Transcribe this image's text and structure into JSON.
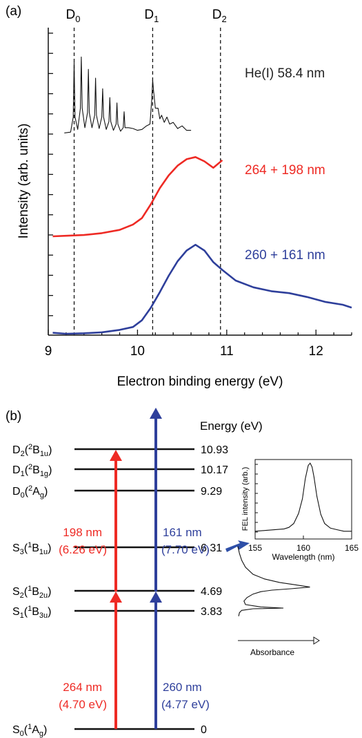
{
  "panel_a": {
    "label": "(a)",
    "ylabel": "Intensity (arb. units)",
    "xlabel": "Electron binding energy (eV)",
    "xticks": [
      "9",
      "10",
      "11",
      "12"
    ],
    "dashed_lines": [
      {
        "label": "D",
        "sub": "0",
        "x": 9.29
      },
      {
        "label": "D",
        "sub": "1",
        "x": 10.17
      },
      {
        "label": "D",
        "sub": "2",
        "x": 10.93
      }
    ]
  },
  "panel_b": {
    "label": "(b)",
    "energy_header": "Energy (eV)",
    "arrow_labels": {
      "red_upper": [
        "198 nm",
        "(6.26 eV)"
      ],
      "blue_upper": [
        "161 nm",
        "(7.70 eV)"
      ],
      "red_lower": [
        "264 nm",
        "(4.70 eV)"
      ],
      "blue_lower": [
        "260 nm",
        "(4.77 eV)"
      ]
    },
    "inset_fel": {
      "ylabel": "FEL intensity (arb.)",
      "xlabel": "Wavelength (nm)",
      "xticks": [
        "155",
        "160",
        "165"
      ]
    },
    "absorbance_label": "Absorbance"
  },
  "chart_data": [
    {
      "type": "line",
      "xlabel": "Electron binding energy (eV)",
      "ylabel": "Intensity (arb. units)",
      "xlim": [
        9,
        12.4
      ],
      "series": [
        {
          "name": "He(I) 58.4 nm",
          "color": "#111111",
          "x": [
            9.18,
            9.25,
            9.28,
            9.29,
            9.3,
            9.33,
            9.36,
            9.37,
            9.38,
            9.41,
            9.44,
            9.45,
            9.46,
            9.49,
            9.52,
            9.53,
            9.54,
            9.57,
            9.6,
            9.61,
            9.62,
            9.65,
            9.68,
            9.69,
            9.7,
            9.73,
            9.76,
            9.77,
            9.78,
            9.81,
            9.84,
            9.85,
            9.86,
            9.9,
            9.95,
            10.0,
            10.05,
            10.1,
            10.14,
            10.16,
            10.17,
            10.18,
            10.2,
            10.23,
            10.25,
            10.27,
            10.3,
            10.33,
            10.36,
            10.4,
            10.45,
            10.5,
            10.55,
            10.6
          ],
          "y": [
            0.02,
            0.03,
            0.2,
            0.82,
            0.2,
            0.06,
            0.3,
            0.88,
            0.3,
            0.08,
            0.25,
            0.74,
            0.25,
            0.08,
            0.22,
            0.64,
            0.22,
            0.07,
            0.2,
            0.52,
            0.2,
            0.06,
            0.15,
            0.42,
            0.15,
            0.05,
            0.12,
            0.36,
            0.12,
            0.04,
            0.08,
            0.26,
            0.08,
            0.08,
            0.07,
            0.05,
            0.06,
            0.1,
            0.12,
            0.4,
            0.62,
            0.5,
            0.3,
            0.3,
            0.18,
            0.22,
            0.14,
            0.2,
            0.12,
            0.14,
            0.07,
            0.1,
            0.05,
            0.05
          ]
        },
        {
          "name": "264 + 198 nm",
          "color": "#ee2a24",
          "x": [
            9.05,
            9.2,
            9.4,
            9.6,
            9.8,
            9.95,
            10.05,
            10.15,
            10.25,
            10.35,
            10.45,
            10.55,
            10.65,
            10.75,
            10.85,
            10.95
          ],
          "y": [
            0.0,
            0.005,
            0.012,
            0.03,
            0.06,
            0.11,
            0.17,
            0.3,
            0.45,
            0.57,
            0.66,
            0.72,
            0.74,
            0.7,
            0.64,
            0.71
          ]
        },
        {
          "name": "260 + 161 nm",
          "color": "#2e3f9b",
          "x": [
            9.05,
            9.2,
            9.4,
            9.6,
            9.8,
            9.95,
            10.05,
            10.15,
            10.25,
            10.35,
            10.45,
            10.55,
            10.65,
            10.75,
            10.85,
            10.95,
            11.1,
            11.3,
            11.5,
            11.7,
            11.9,
            12.1,
            12.3,
            12.4
          ],
          "y": [
            0.01,
            0.0,
            0.005,
            0.015,
            0.04,
            0.07,
            0.14,
            0.27,
            0.43,
            0.6,
            0.75,
            0.86,
            0.92,
            0.86,
            0.74,
            0.66,
            0.55,
            0.48,
            0.44,
            0.42,
            0.38,
            0.33,
            0.3,
            0.27
          ]
        }
      ]
    },
    {
      "type": "diagram",
      "levels": [
        {
          "state": "S",
          "sub": "0",
          "sym": "1",
          "term": "A",
          "termsub": "g",
          "energy": "0"
        },
        {
          "state": "S",
          "sub": "1",
          "sym": "1",
          "term": "B",
          "termsub": "3u",
          "energy": "3.83"
        },
        {
          "state": "S",
          "sub": "2",
          "sym": "1",
          "term": "B",
          "termsub": "2u",
          "energy": "4.69"
        },
        {
          "state": "S",
          "sub": "3",
          "sym": "1",
          "term": "B",
          "termsub": "1u",
          "energy": "6.31"
        },
        {
          "state": "D",
          "sub": "0",
          "sym": "2",
          "term": "A",
          "termsub": "g",
          "energy": "9.29"
        },
        {
          "state": "D",
          "sub": "1",
          "sym": "2",
          "term": "B",
          "termsub": "1g",
          "energy": "10.17"
        },
        {
          "state": "D",
          "sub": "2",
          "sym": "2",
          "term": "B",
          "termsub": "1u",
          "energy": "10.93"
        }
      ]
    },
    {
      "type": "line",
      "xlabel": "Wavelength (nm)",
      "ylabel": "FEL intensity (arb.)",
      "xlim": [
        155,
        165
      ],
      "x": [
        155,
        156,
        157,
        158,
        158.5,
        159,
        159.5,
        159.9,
        160.2,
        160.5,
        160.7,
        160.9,
        161.1,
        161.4,
        161.8,
        162.2,
        162.8,
        163.5,
        164.2,
        165
      ],
      "y": [
        0.1,
        0.11,
        0.12,
        0.13,
        0.15,
        0.2,
        0.33,
        0.52,
        0.78,
        0.95,
        0.98,
        0.93,
        0.8,
        0.55,
        0.32,
        0.2,
        0.14,
        0.12,
        0.1,
        0.1
      ]
    },
    {
      "type": "line",
      "xlabel": "Absorbance",
      "x": [
        0.0,
        0.02,
        0.05,
        0.1,
        0.2,
        0.35,
        0.55,
        0.75,
        0.95,
        0.7,
        0.45,
        0.3,
        0.2,
        0.12,
        0.08,
        0.1,
        0.3,
        0.6,
        0.2,
        0.05,
        0.02,
        0.01
      ],
      "y": [
        6.6,
        6.3,
        6.0,
        5.7,
        5.4,
        5.2,
        5.05,
        4.95,
        4.85,
        4.78,
        4.72,
        4.65,
        4.55,
        4.4,
        4.25,
        4.1,
        4.0,
        3.95,
        3.92,
        3.85,
        3.75,
        3.6
      ]
    }
  ]
}
